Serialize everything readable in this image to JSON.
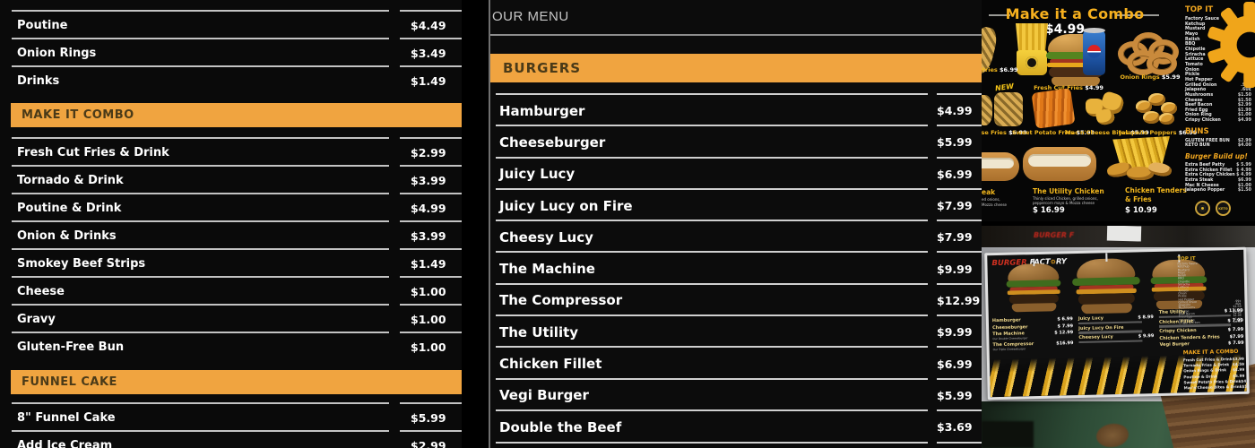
{
  "colors": {
    "accent_orange": "#f0a440",
    "combo_yellow": "#f6b01e",
    "row_text": "#ffffff",
    "divider": "#c8c8c8",
    "logo_red": "#d03020"
  },
  "left_panel": {
    "sections": [
      {
        "header": "",
        "items": [
          {
            "name": "Poutine",
            "price": "$4.49"
          },
          {
            "name": "Onion Rings",
            "price": "$3.49"
          },
          {
            "name": "Drinks",
            "price": "$1.49"
          }
        ]
      },
      {
        "header": "MAKE IT COMBO",
        "items": [
          {
            "name": "Fresh Cut Fries & Drink",
            "price": "$2.99"
          },
          {
            "name": "Tornado & Drink",
            "price": "$3.99"
          },
          {
            "name": "Poutine & Drink",
            "price": "$4.99"
          },
          {
            "name": "Onion & Drinks",
            "price": "$3.99"
          },
          {
            "name": "Smokey Beef Strips",
            "price": "$1.49"
          },
          {
            "name": "Cheese",
            "price": "$1.00"
          },
          {
            "name": "Gravy",
            "price": "$1.00"
          },
          {
            "name": "Gluten-Free Bun",
            "price": "$1.00"
          }
        ]
      },
      {
        "header": "FUNNEL CAKE",
        "items": [
          {
            "name": "8\" Funnel Cake",
            "price": "$5.99"
          },
          {
            "name": "Add Ice Cream",
            "price": "$2.99"
          }
        ]
      }
    ]
  },
  "center_panel": {
    "title": "OUR MENU",
    "section_header": "BURGERS",
    "items": [
      {
        "name": "Hamburger",
        "price": "$4.99"
      },
      {
        "name": "Cheeseburger",
        "price": "$5.99"
      },
      {
        "name": "Juicy Lucy",
        "price": "$6.99"
      },
      {
        "name": "Juicy Lucy on Fire",
        "price": "$7.99"
      },
      {
        "name": "Cheesy Lucy",
        "price": "$7.99"
      },
      {
        "name": "The Machine",
        "price": "$9.99"
      },
      {
        "name": "The Compressor",
        "price": "$12.99"
      },
      {
        "name": "The Utility",
        "price": "$9.99"
      },
      {
        "name": "Chicken Fillet",
        "price": "$6.99"
      },
      {
        "name": "Vegi Burger",
        "price": "$5.99"
      },
      {
        "name": "Double the Beef",
        "price": "$3.69"
      }
    ]
  },
  "combo_board": {
    "title": "Make it a Combo",
    "price": "$4.99",
    "new_badge": "NEW",
    "label_fries_partial": {
      "name": "Fries",
      "price": "$6.99"
    },
    "label_fresh_cut": {
      "name": "Fresh Cut Fries",
      "price": "$4.99"
    },
    "label_onion_rings": {
      "name": "Onion Rings",
      "price": "$5.99"
    },
    "row2_labels": [
      {
        "name": "Cheese Fries",
        "price": "$6.99"
      },
      {
        "name": "Sweet Potato Fries",
        "price": "$5.99"
      },
      {
        "name": "Mac'n'Cheese Bites",
        "price": "$5.99"
      },
      {
        "name": "Jalapeño Poppers",
        "price": "$6.99"
      }
    ],
    "label_steak_partial": {
      "name": "eak",
      "desc1": "ed onions,",
      "desc2": "Mozza cheese"
    },
    "label_utility": {
      "name": "The Utility Chicken",
      "desc1": "Thinly sliced Chicken, grilled onions,",
      "desc2": "peppercorn mayo & Mozza cheese",
      "price": "$ 16.99"
    },
    "label_tenders": {
      "name": "Chicken Tenders",
      "name2": "& Fries",
      "price": "$ 10.99"
    },
    "top_it": {
      "header": "TOP IT",
      "items": [
        {
          "name": "Factory Sauce",
          "price": ""
        },
        {
          "name": "Ketchup",
          "price": ""
        },
        {
          "name": "Mustard",
          "price": ""
        },
        {
          "name": "Mayo",
          "price": ""
        },
        {
          "name": "Relish",
          "price": ""
        },
        {
          "name": "BBQ",
          "price": ""
        },
        {
          "name": "Chipotle",
          "price": ""
        },
        {
          "name": "Sriracha",
          "price": ""
        },
        {
          "name": "Lettuce",
          "price": ""
        },
        {
          "name": "Tomato",
          "price": ""
        },
        {
          "name": "Onion",
          "price": ""
        },
        {
          "name": "Pickle",
          "price": ""
        },
        {
          "name": "Hot Pepper",
          "price": ""
        },
        {
          "name": "Grilled Onion",
          "price": ".99¢"
        },
        {
          "name": "Jalapeño",
          "price": ".60¢"
        },
        {
          "name": "Mushrooms",
          "price": "$1.50"
        },
        {
          "name": "Cheese",
          "price": "$1.50"
        },
        {
          "name": "Beef Bacon",
          "price": "$2.99"
        },
        {
          "name": "Fried Egg",
          "price": "$1.99"
        },
        {
          "name": "Onion Ring",
          "price": "$1.00"
        },
        {
          "name": "Crispy Chicken",
          "price": "$4.99"
        }
      ]
    },
    "buns": {
      "header": "BUNS",
      "items": [
        {
          "name": "GLUTEN FREE BUN",
          "price": "$2.99"
        },
        {
          "name": "KETO BUN",
          "price": "$4.00"
        }
      ]
    },
    "build_up": {
      "header": "Burger Build up!",
      "items": [
        {
          "name": "Extra Beef Patty",
          "price": "$ 5.99"
        },
        {
          "name": "Extra Chicken Fillet",
          "price": "$ 4.99"
        },
        {
          "name": "Extra Crispy Chicken",
          "price": "$ 4.99"
        },
        {
          "name": "Extra Steak",
          "price": "$6.99"
        },
        {
          "name": "Mac N Cheese",
          "price": "$1.00"
        },
        {
          "name": "Jalapeño Popper",
          "price": "$1.50"
        }
      ]
    },
    "keto_badge": "KETO"
  },
  "photo": {
    "bg_text": "BURGER F",
    "logo": {
      "burger": "BURGER ",
      "fact": "FACT",
      "gear": "⚙",
      "ry": "RY"
    },
    "top_it_header": "TOP IT",
    "columns": [
      {
        "items": [
          {
            "name": "Hamburger",
            "price": "$ 6.99"
          },
          {
            "name": "Cheeseburger",
            "price": "$ 7.99"
          },
          {
            "name": "The Machine",
            "price": "$ 12.99",
            "sub": "Our Double Cheeseburger"
          },
          {
            "name": "The Compressor",
            "price": "$16.99",
            "sub": "Our Triple Cheeseburger"
          }
        ]
      },
      {
        "items": [
          {
            "name": "Juicy Lucy",
            "price": "$ 8.99",
            "smudge": true
          },
          {
            "name": "Juicy Lucy On Fire",
            "price": "",
            "smudge": true
          },
          {
            "name": "Cheesey Lucy",
            "price": "$ 9.99",
            "smudge": true
          }
        ]
      },
      {
        "items": [
          {
            "name": "The Utility",
            "price": "$ 13.99",
            "smudge": true
          },
          {
            "name": "Chicken Fillet",
            "price": "$ 7.99",
            "smudge": true
          },
          {
            "name": "Crispy Chicken",
            "price": "$ 7.99"
          },
          {
            "name": "Chicken Tenders & Fries",
            "price": "$7.99"
          },
          {
            "name": "Vegi Burger",
            "price": "$ 7.99"
          }
        ]
      }
    ],
    "combo": {
      "header": "MAKE IT A COMBO",
      "items": [
        {
          "name": "Fresh Cut Fries & Drink",
          "price": "$3.99"
        },
        {
          "name": "Tornado Fries & Drink",
          "price": "$4.59"
        },
        {
          "name": "Onion Rings & Drink",
          "price": "$4.99"
        },
        {
          "name": "Poutine & Drink",
          "price": "$5.99"
        },
        {
          "name": "Sweet Potato Fries & Drink",
          "price": "$4.99"
        },
        {
          "name": "Mac'n'Cheese Bites & Drink",
          "price": "$5.99"
        }
      ]
    }
  }
}
